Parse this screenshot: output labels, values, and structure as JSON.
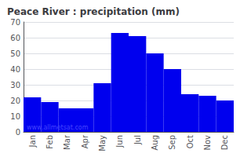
{
  "chart_data": {
    "type": "bar",
    "title": "Peace River : precipitation (mm)",
    "categories": [
      "Jan",
      "Feb",
      "Mar",
      "Apr",
      "May",
      "Jun",
      "Jul",
      "Aug",
      "Sep",
      "Oct",
      "Nov",
      "Dec"
    ],
    "values": [
      22,
      19,
      15,
      15,
      31,
      63,
      61,
      50,
      40,
      24,
      23,
      20
    ],
    "color": "#0000ee",
    "ylim": [
      0,
      70
    ],
    "yticks": [
      0,
      10,
      20,
      30,
      40,
      50,
      60,
      70
    ],
    "grid": true,
    "annotations": [
      {
        "text": "www.allmetsat.com",
        "color": "#4444ff"
      }
    ]
  }
}
